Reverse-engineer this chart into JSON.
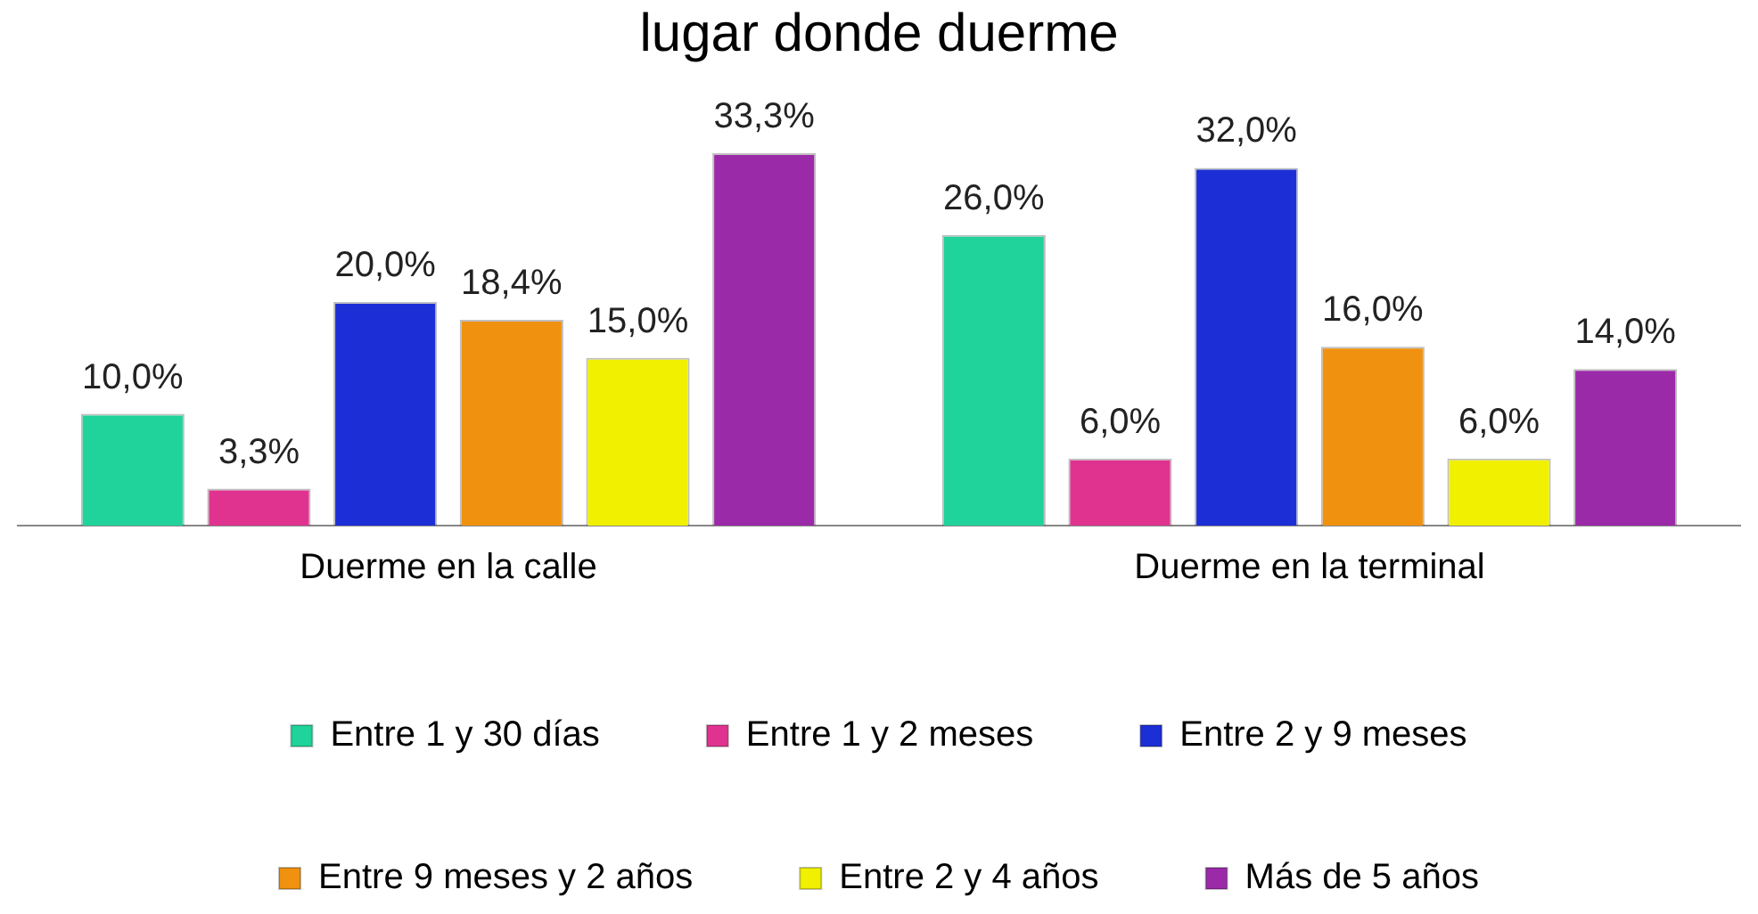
{
  "chart_data": {
    "type": "bar",
    "title": "lugar donde duerme",
    "categories": [
      "Duerme en la calle",
      "Duerme en la terminal"
    ],
    "legend": "bottom",
    "grid": false,
    "series": [
      {
        "name": "Entre 1 y 30 días",
        "color": "#1fd39a",
        "values": [
          10.0,
          26.0
        ],
        "value_labels": [
          "10,0%",
          "26,0%"
        ]
      },
      {
        "name": "Entre 1 y 2 meses",
        "color": "#e0338f",
        "values": [
          3.3,
          6.0
        ],
        "value_labels": [
          "3,3%",
          "6,0%"
        ]
      },
      {
        "name": "Entre 2 y 9 meses",
        "color": "#1c2fd6",
        "values": [
          20.0,
          32.0
        ],
        "value_labels": [
          "20,0%",
          "32,0%"
        ]
      },
      {
        "name": "Entre 9 meses y 2 años",
        "color": "#f0910f",
        "values": [
          18.4,
          16.0
        ],
        "value_labels": [
          "18,4%",
          "16,0%"
        ]
      },
      {
        "name": "Entre 2 y 4 años",
        "color": "#f0f000",
        "values": [
          15.0,
          6.0
        ],
        "value_labels": [
          "15,0%",
          "6,0%"
        ]
      },
      {
        "name": "Más de 5 años",
        "color": "#9b2aa8",
        "values": [
          33.3,
          14.0
        ],
        "value_labels": [
          "33,3%",
          "14,0%"
        ]
      }
    ]
  }
}
